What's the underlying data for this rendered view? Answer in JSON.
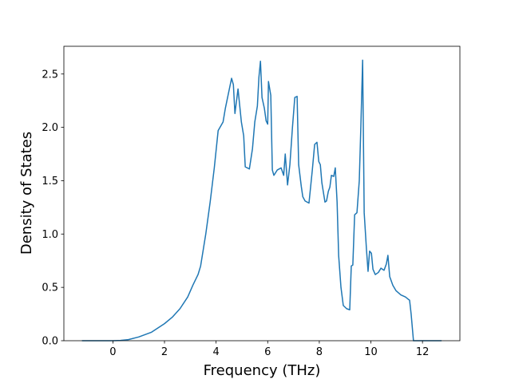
{
  "chart_data": {
    "type": "line",
    "x_label": "Frequency (THz)",
    "y_label": "Density of States",
    "xlim": [
      -1.9,
      13.45
    ],
    "ylim": [
      0,
      2.76
    ],
    "xticks": [
      0,
      2,
      4,
      6,
      8,
      10,
      12
    ],
    "yticks": [
      {
        "value": 0,
        "label": "0.0"
      },
      0.5,
      {
        "value": 1,
        "label": "1.0"
      },
      1.5,
      {
        "value": 2,
        "label": "2.0"
      },
      2.5
    ],
    "grid": false,
    "series": [
      {
        "color": "#1f77b4",
        "x": [
          -1.2,
          0,
          0.3,
          0.6,
          1.0,
          1.5,
          2.0,
          2.3,
          2.6,
          2.9,
          3.1,
          3.3,
          3.4,
          3.6,
          3.77,
          3.93,
          4.08,
          4.27,
          4.36,
          4.6,
          4.67,
          4.73,
          4.85,
          4.98,
          5.07,
          5.13,
          5.29,
          5.41,
          5.5,
          5.6,
          5.66,
          5.72,
          5.78,
          5.87,
          5.94,
          6.0,
          6.03,
          6.12,
          6.18,
          6.24,
          6.37,
          6.52,
          6.62,
          6.68,
          6.77,
          6.86,
          6.96,
          7.05,
          7.14,
          7.2,
          7.3,
          7.36,
          7.45,
          7.6,
          7.73,
          7.82,
          7.91,
          7.98,
          8.04,
          8.1,
          8.22,
          8.28,
          8.35,
          8.41,
          8.47,
          8.56,
          8.62,
          8.69,
          8.75,
          8.84,
          8.93,
          9.06,
          9.18,
          9.24,
          9.3,
          9.37,
          9.46,
          9.55,
          9.61,
          9.68,
          9.74,
          9.83,
          9.89,
          9.95,
          10.02,
          10.08,
          10.17,
          10.29,
          10.39,
          10.51,
          10.6,
          10.66,
          10.73,
          10.85,
          10.97,
          11.16,
          11.34,
          11.44,
          11.5,
          11.56,
          11.65,
          12.74
        ],
        "values": [
          0,
          0,
          0.003,
          0.01,
          0.035,
          0.08,
          0.16,
          0.22,
          0.3,
          0.41,
          0.52,
          0.62,
          0.7,
          1.0,
          1.3,
          1.62,
          1.97,
          2.05,
          2.18,
          2.46,
          2.4,
          2.13,
          2.36,
          2.05,
          1.92,
          1.63,
          1.61,
          1.8,
          2.05,
          2.2,
          2.47,
          2.62,
          2.28,
          2.18,
          2.06,
          2.03,
          2.43,
          2.3,
          1.6,
          1.55,
          1.6,
          1.62,
          1.55,
          1.75,
          1.46,
          1.65,
          2.0,
          2.28,
          2.29,
          1.65,
          1.45,
          1.35,
          1.31,
          1.29,
          1.6,
          1.84,
          1.86,
          1.68,
          1.65,
          1.48,
          1.3,
          1.31,
          1.4,
          1.44,
          1.55,
          1.54,
          1.62,
          1.3,
          0.8,
          0.5,
          0.33,
          0.3,
          0.29,
          0.7,
          0.71,
          1.18,
          1.2,
          1.5,
          2.0,
          2.63,
          1.2,
          0.85,
          0.65,
          0.84,
          0.82,
          0.67,
          0.62,
          0.64,
          0.68,
          0.66,
          0.72,
          0.8,
          0.6,
          0.52,
          0.47,
          0.43,
          0.41,
          0.39,
          0.38,
          0.25,
          0,
          0
        ]
      }
    ]
  }
}
